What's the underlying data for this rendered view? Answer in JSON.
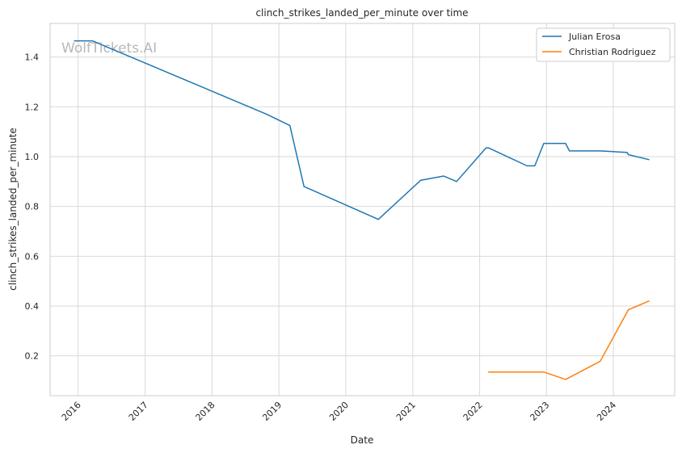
{
  "chart_data": {
    "type": "line",
    "title": "clinch_strikes_landed_per_minute over time",
    "xlabel": "Date",
    "ylabel": "clinch_strikes_landed_per_minute",
    "watermark": "WolfTickets.AI",
    "xlim": [
      "2015-08-01",
      "2024-12-01"
    ],
    "ylim": [
      0.04,
      1.535
    ],
    "x_ticks": [
      "2016",
      "2017",
      "2018",
      "2019",
      "2020",
      "2021",
      "2022",
      "2023",
      "2024"
    ],
    "y_ticks": [
      "0.2",
      "0.4",
      "0.6",
      "0.8",
      "1.0",
      "1.2",
      "1.4"
    ],
    "grid": true,
    "legend_position": "top-right",
    "series": [
      {
        "name": "Julian Erosa",
        "color": "#1f77b4",
        "points": [
          [
            "2015-12-12",
            1.465
          ],
          [
            "2016-03-19",
            1.465
          ],
          [
            "2018-10-27",
            1.17
          ],
          [
            "2019-03-02",
            1.125
          ],
          [
            "2019-05-18",
            0.88
          ],
          [
            "2020-06-27",
            0.748
          ],
          [
            "2021-02-13",
            0.905
          ],
          [
            "2021-06-19",
            0.922
          ],
          [
            "2021-08-28",
            0.9
          ],
          [
            "2022-02-05",
            1.035
          ],
          [
            "2022-02-19",
            1.035
          ],
          [
            "2022-09-17",
            0.963
          ],
          [
            "2022-10-29",
            0.963
          ],
          [
            "2022-12-17",
            1.053
          ],
          [
            "2023-04-15",
            1.053
          ],
          [
            "2023-05-06",
            1.023
          ],
          [
            "2023-10-21",
            1.023
          ],
          [
            "2024-03-16",
            1.017
          ],
          [
            "2024-03-23",
            1.008
          ],
          [
            "2024-07-13",
            0.988
          ]
        ]
      },
      {
        "name": "Christian Rodriguez",
        "color": "#ff7f0e",
        "points": [
          [
            "2022-02-19",
            0.135
          ],
          [
            "2022-12-17",
            0.135
          ],
          [
            "2023-04-15",
            0.105
          ],
          [
            "2023-10-21",
            0.178
          ],
          [
            "2024-03-23",
            0.385
          ],
          [
            "2024-07-13",
            0.42
          ]
        ]
      }
    ]
  }
}
